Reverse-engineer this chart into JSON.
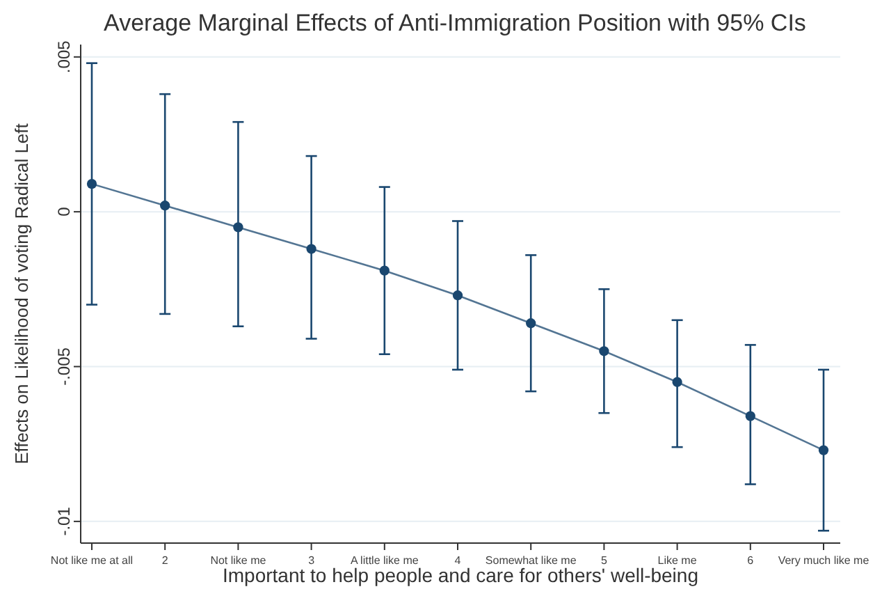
{
  "chart_data": {
    "type": "line",
    "title": "Average Marginal Effects of Anti-Immigration Position with 95% CIs",
    "xlabel": "Important to help people and care for others' well-being",
    "ylabel": "Effects on Likelihood of voting Radical Left",
    "categories": [
      "Not like me at all",
      "2",
      "Not like me",
      "3",
      "A little like me",
      "4",
      "Somewhat like me",
      "5",
      "Like me",
      "6",
      "Very much like me"
    ],
    "series": [
      {
        "color": "#1a476f",
        "values": [
          0.0009,
          0.0002,
          -0.0005,
          -0.0012,
          -0.0019,
          -0.0027,
          -0.0036,
          -0.0045,
          -0.0055,
          -0.0066,
          -0.0077
        ],
        "errors": [
          [
            -0.003,
            0.0048
          ],
          [
            -0.0033,
            0.0038
          ],
          [
            -0.0037,
            0.0029
          ],
          [
            -0.0041,
            0.0018
          ],
          [
            -0.0046,
            0.0008
          ],
          [
            -0.0051,
            -0.0003
          ],
          [
            -0.0058,
            -0.0014
          ],
          [
            -0.0065,
            -0.0025
          ],
          [
            -0.0076,
            -0.0035
          ],
          [
            -0.0088,
            -0.0043
          ],
          [
            -0.0103,
            -0.0051
          ]
        ]
      }
    ],
    "ylim": [
      -0.0107,
      0.0054
    ],
    "yticks": [
      {
        "value": 0.005,
        "label": ".005"
      },
      {
        "value": 0,
        "label": "0"
      },
      {
        "value": -0.005,
        "label": "-.005"
      },
      {
        "value": -0.01,
        "label": "-.01"
      }
    ],
    "grid": "y",
    "marker": "circle"
  }
}
